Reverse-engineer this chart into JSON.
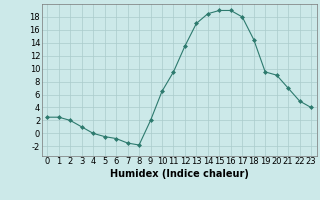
{
  "x": [
    0,
    1,
    2,
    3,
    4,
    5,
    6,
    7,
    8,
    9,
    10,
    11,
    12,
    13,
    14,
    15,
    16,
    17,
    18,
    19,
    20,
    21,
    22,
    23
  ],
  "y": [
    2.5,
    2.5,
    2.0,
    1.0,
    0.0,
    -0.5,
    -0.8,
    -1.5,
    -1.8,
    2.0,
    6.5,
    9.5,
    13.5,
    17.0,
    18.5,
    19.0,
    19.0,
    18.0,
    14.5,
    9.5,
    9.0,
    7.0,
    5.0,
    4.0
  ],
  "line_color": "#2d7a6e",
  "marker": "D",
  "marker_size": 2,
  "background_color": "#cce9e9",
  "grid_color": "#aacccc",
  "xlabel": "Humidex (Indice chaleur)",
  "xlim": [
    -0.5,
    23.5
  ],
  "ylim": [
    -3.5,
    20
  ],
  "yticks": [
    -2,
    0,
    2,
    4,
    6,
    8,
    10,
    12,
    14,
    16,
    18
  ],
  "xticks": [
    0,
    1,
    2,
    3,
    4,
    5,
    6,
    7,
    8,
    9,
    10,
    11,
    12,
    13,
    14,
    15,
    16,
    17,
    18,
    19,
    20,
    21,
    22,
    23
  ],
  "tick_fontsize": 6,
  "xlabel_fontsize": 7
}
